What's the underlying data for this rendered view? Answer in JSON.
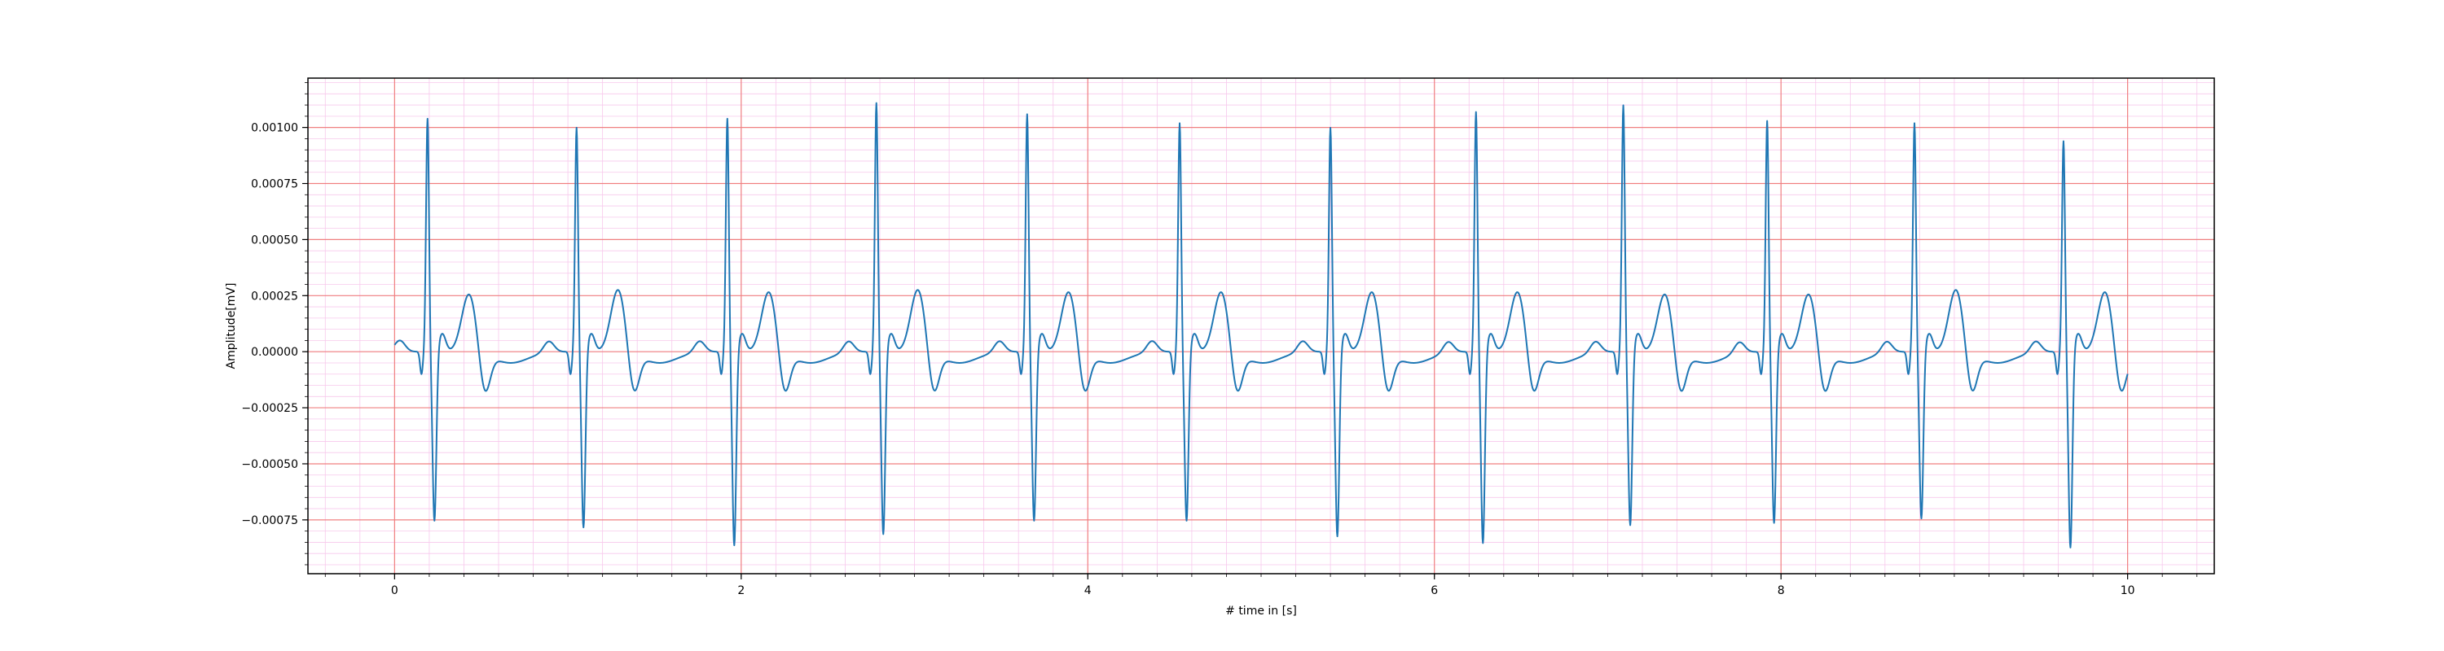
{
  "chart_data": {
    "type": "line",
    "title": "",
    "xlabel": "# time in [s]",
    "ylabel": "Amplitude[mV]",
    "xlim": [
      -0.5,
      10.5
    ],
    "ylim": [
      -0.00099,
      0.00122
    ],
    "x_ticks": [
      0,
      2,
      4,
      6,
      8,
      10
    ],
    "x_tick_labels": [
      "0",
      "2",
      "4",
      "6",
      "8",
      "10"
    ],
    "y_ticks": [
      0.001,
      0.00075,
      0.0005,
      0.00025,
      0.0,
      -0.00025,
      -0.0005,
      -0.00075
    ],
    "y_tick_labels": [
      "0.00100",
      "0.00075",
      "0.00050",
      "0.00025",
      "0.00000",
      "−0.00025",
      "−0.00050",
      "−0.00075"
    ],
    "grid": true,
    "colors": {
      "line": "#1f77b4",
      "major_grid": "#f08080",
      "minor_grid": "#f7c8ec",
      "axes": "#000000"
    },
    "series": [
      {
        "x_start": 0.0,
        "x_end": 10.0,
        "beats": [
          {
            "t": 0.19,
            "r": 0.00104,
            "s": -0.00076,
            "t_peak": 0.00026
          },
          {
            "t": 1.05,
            "r": 0.001,
            "s": -0.00079,
            "t_peak": 0.00028
          },
          {
            "t": 1.92,
            "r": 0.00104,
            "s": -0.00087,
            "t_peak": 0.00027
          },
          {
            "t": 2.78,
            "r": 0.00111,
            "s": -0.00082,
            "t_peak": 0.00028
          },
          {
            "t": 3.65,
            "r": 0.00106,
            "s": -0.00076,
            "t_peak": 0.00027
          },
          {
            "t": 4.53,
            "r": 0.00102,
            "s": -0.00076,
            "t_peak": 0.00027
          },
          {
            "t": 5.4,
            "r": 0.001,
            "s": -0.00083,
            "t_peak": 0.00027
          },
          {
            "t": 6.24,
            "r": 0.00107,
            "s": -0.00086,
            "t_peak": 0.00027
          },
          {
            "t": 7.09,
            "r": 0.0011,
            "s": -0.00078,
            "t_peak": 0.00026
          },
          {
            "t": 7.92,
            "r": 0.00103,
            "s": -0.00077,
            "t_peak": 0.00026
          },
          {
            "t": 8.77,
            "r": 0.00102,
            "s": -0.00075,
            "t_peak": 0.00028
          },
          {
            "t": 9.63,
            "r": 0.00094,
            "s": -0.00088,
            "t_peak": 0.00027
          }
        ]
      }
    ]
  }
}
